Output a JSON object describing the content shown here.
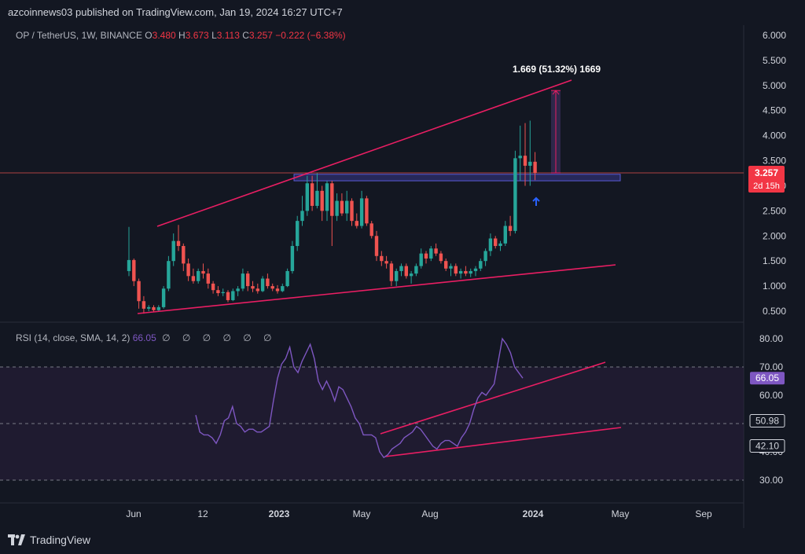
{
  "header": {
    "published_text": "azcoinnews03 published on TradingView.com, Jan 19, 2024 16:27 UTC+7"
  },
  "legend": {
    "symbol": "OP / TetherUS, 1W, BINANCE",
    "o_label": "O",
    "o_value": "3.480",
    "h_label": "H",
    "h_value": "3.673",
    "l_label": "L",
    "l_value": "3.113",
    "c_label": "C",
    "c_value": "3.257",
    "change": "−0.222 (−6.38%)"
  },
  "rsi_legend": {
    "title": "RSI (14, close, SMA, 14, 2)",
    "value": "66.05",
    "na": "∅ ∅ ∅ ∅ ∅ ∅"
  },
  "measure": {
    "label": "1.669 (51.32%) 1669"
  },
  "price_tag": {
    "price": "3.257",
    "countdown": "2d 15h"
  },
  "rsi_tags": [
    "66.05",
    "50.98",
    "42.10"
  ],
  "brand": {
    "name": "TradingView"
  },
  "colors": {
    "background": "#131722",
    "up": "#26a69a",
    "down": "#ef5350",
    "trendline": "#e91e63",
    "rsi_line": "#7e57c2",
    "rsi_band": "#2a1f3d",
    "zone": "#3f3fa0"
  },
  "chart_data": [
    {
      "type": "candlestick",
      "title": "OP / TetherUS, 1W, BINANCE",
      "x_ticks": [
        "Jun",
        "12",
        "2023",
        "May",
        "Aug",
        "2024",
        "May",
        "Sep"
      ],
      "y_ticks": [
        "0.500",
        "1.000",
        "1.500",
        "2.000",
        "2.500",
        "3.000",
        "3.500",
        "4.000",
        "4.500",
        "5.000",
        "5.500",
        "6.000"
      ],
      "ylim": [
        0.5,
        6.0
      ],
      "current_price": 3.257,
      "candles_ohlc": [
        [
          1.3,
          2.18,
          1.2,
          1.52
        ],
        [
          1.52,
          1.55,
          1.0,
          1.1
        ],
        [
          1.1,
          1.15,
          0.55,
          0.7
        ],
        [
          0.7,
          0.8,
          0.45,
          0.55
        ],
        [
          0.55,
          0.62,
          0.5,
          0.58
        ],
        [
          0.58,
          0.62,
          0.48,
          0.52
        ],
        [
          0.52,
          0.62,
          0.5,
          0.58
        ],
        [
          0.58,
          1.0,
          0.55,
          0.95
        ],
        [
          0.95,
          1.6,
          0.9,
          1.5
        ],
        [
          1.5,
          2.05,
          1.4,
          1.9
        ],
        [
          1.9,
          2.22,
          1.7,
          1.8
        ],
        [
          1.8,
          1.85,
          1.3,
          1.45
        ],
        [
          1.45,
          1.55,
          1.1,
          1.2
        ],
        [
          1.2,
          1.35,
          1.05,
          1.1
        ],
        [
          1.1,
          1.35,
          1.05,
          1.3
        ],
        [
          1.3,
          1.45,
          1.15,
          1.25
        ],
        [
          1.25,
          1.35,
          0.95,
          1.05
        ],
        [
          1.05,
          1.1,
          0.85,
          0.92
        ],
        [
          0.92,
          1.0,
          0.8,
          0.86
        ],
        [
          0.86,
          0.95,
          0.8,
          0.88
        ],
        [
          0.88,
          0.92,
          0.68,
          0.72
        ],
        [
          0.72,
          0.95,
          0.7,
          0.9
        ],
        [
          0.9,
          1.0,
          0.8,
          0.95
        ],
        [
          0.95,
          1.35,
          0.9,
          1.25
        ],
        [
          1.25,
          1.3,
          0.9,
          1.0
        ],
        [
          1.0,
          1.1,
          0.88,
          0.95
        ],
        [
          0.95,
          1.05,
          0.85,
          0.9
        ],
        [
          0.9,
          1.2,
          0.88,
          1.15
        ],
        [
          1.15,
          1.25,
          0.95,
          1.0
        ],
        [
          1.0,
          1.05,
          0.9,
          0.95
        ],
        [
          0.95,
          1.02,
          0.85,
          0.9
        ],
        [
          0.9,
          1.05,
          0.88,
          1.0
        ],
        [
          1.0,
          1.35,
          0.98,
          1.3
        ],
        [
          1.3,
          1.9,
          1.25,
          1.8
        ],
        [
          1.8,
          2.4,
          1.7,
          2.3
        ],
        [
          2.3,
          2.8,
          2.2,
          2.5
        ],
        [
          2.5,
          3.2,
          2.4,
          3.05
        ],
        [
          3.05,
          3.2,
          2.5,
          2.6
        ],
        [
          2.6,
          3.25,
          2.55,
          2.9
        ],
        [
          2.9,
          3.0,
          2.3,
          2.5
        ],
        [
          2.5,
          3.1,
          2.3,
          3.05
        ],
        [
          3.05,
          3.1,
          1.8,
          2.4
        ],
        [
          2.4,
          2.85,
          2.3,
          2.7
        ],
        [
          2.7,
          2.85,
          2.4,
          2.45
        ],
        [
          2.45,
          2.9,
          2.3,
          2.7
        ],
        [
          2.7,
          2.75,
          2.2,
          2.3
        ],
        [
          2.3,
          2.45,
          2.15,
          2.2
        ],
        [
          2.2,
          2.9,
          2.15,
          2.75
        ],
        [
          2.75,
          2.8,
          2.2,
          2.25
        ],
        [
          2.25,
          2.3,
          1.95,
          2.0
        ],
        [
          2.0,
          2.1,
          1.5,
          1.6
        ],
        [
          1.6,
          1.7,
          1.4,
          1.5
        ],
        [
          1.5,
          1.6,
          1.35,
          1.45
        ],
        [
          1.45,
          1.5,
          1.0,
          1.1
        ],
        [
          1.1,
          1.35,
          1.0,
          1.3
        ],
        [
          1.3,
          1.45,
          1.2,
          1.4
        ],
        [
          1.4,
          1.45,
          1.15,
          1.2
        ],
        [
          1.2,
          1.3,
          1.05,
          1.25
        ],
        [
          1.25,
          1.45,
          1.2,
          1.4
        ],
        [
          1.4,
          1.75,
          1.35,
          1.65
        ],
        [
          1.65,
          1.7,
          1.45,
          1.55
        ],
        [
          1.55,
          1.8,
          1.5,
          1.75
        ],
        [
          1.75,
          1.85,
          1.6,
          1.65
        ],
        [
          1.65,
          1.7,
          1.45,
          1.5
        ],
        [
          1.5,
          1.55,
          1.3,
          1.35
        ],
        [
          1.35,
          1.45,
          1.2,
          1.4
        ],
        [
          1.4,
          1.45,
          1.2,
          1.25
        ],
        [
          1.25,
          1.35,
          1.15,
          1.3
        ],
        [
          1.3,
          1.4,
          1.2,
          1.25
        ],
        [
          1.25,
          1.35,
          1.18,
          1.3
        ],
        [
          1.3,
          1.4,
          1.2,
          1.35
        ],
        [
          1.35,
          1.55,
          1.3,
          1.5
        ],
        [
          1.5,
          1.75,
          1.4,
          1.7
        ],
        [
          1.7,
          2.05,
          1.6,
          1.95
        ],
        [
          1.95,
          2.0,
          1.75,
          1.8
        ],
        [
          1.8,
          1.9,
          1.7,
          1.85
        ],
        [
          1.85,
          2.3,
          1.8,
          2.2
        ],
        [
          2.2,
          2.4,
          2.0,
          2.1
        ],
        [
          2.1,
          3.7,
          2.05,
          3.55
        ],
        [
          3.55,
          4.2,
          3.1,
          3.6
        ],
        [
          3.6,
          4.25,
          3.0,
          3.4
        ],
        [
          3.4,
          4.3,
          3.0,
          3.48
        ],
        [
          3.48,
          3.673,
          3.113,
          3.257
        ]
      ],
      "annotations": {
        "resistance_zone": [
          3.1,
          3.23
        ],
        "measure_from": 3.257,
        "measure_to": 4.9,
        "measure_label": "1.669 (51.32%) 1669"
      }
    },
    {
      "type": "line",
      "title": "RSI (14, close, SMA, 14, 2)",
      "y_ticks": [
        "30.00",
        "40.00",
        "50.00",
        "60.00",
        "70.00",
        "80.00"
      ],
      "ylim": [
        25,
        85
      ],
      "bands": [
        30,
        50,
        70
      ],
      "current_value": 66.05,
      "series": [
        {
          "values": [
            53,
            47,
            46,
            46,
            45,
            43,
            46,
            51,
            52,
            56,
            50,
            49,
            47,
            48,
            48,
            47,
            47,
            48,
            49,
            58,
            66,
            71,
            73,
            77,
            70,
            68,
            72,
            75,
            78,
            73,
            65,
            62,
            65,
            62,
            58,
            63,
            62,
            59,
            56,
            52,
            50,
            46,
            46,
            46,
            45,
            40,
            38,
            39,
            41,
            42,
            43,
            45,
            46,
            47,
            49,
            48,
            46,
            44,
            42,
            41,
            43,
            44,
            44,
            43,
            42,
            45,
            47,
            50,
            55,
            59,
            61,
            60,
            62,
            64,
            72,
            80,
            78,
            75,
            70,
            68,
            66.05
          ]
        }
      ]
    }
  ]
}
